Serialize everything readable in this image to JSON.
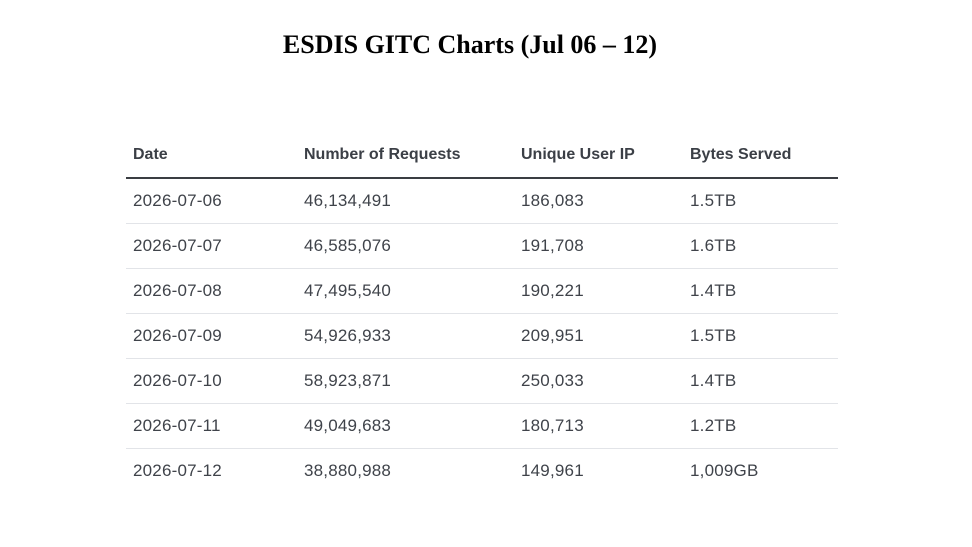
{
  "title": "ESDIS GITC Charts (Jul 06 – 12)",
  "table": {
    "headers": {
      "date": "Date",
      "requests": "Number of Requests",
      "unique_ip": "Unique User IP",
      "bytes": "Bytes Served"
    },
    "rows": [
      {
        "date": "2026-07-06",
        "requests": "46,134,491",
        "unique_ip": "186,083",
        "bytes": "1.5TB"
      },
      {
        "date": "2026-07-07",
        "requests": "46,585,076",
        "unique_ip": "191,708",
        "bytes": "1.6TB"
      },
      {
        "date": "2026-07-08",
        "requests": "47,495,540",
        "unique_ip": "190,221",
        "bytes": "1.4TB"
      },
      {
        "date": "2026-07-09",
        "requests": "54,926,933",
        "unique_ip": "209,951",
        "bytes": "1.5TB"
      },
      {
        "date": "2026-07-10",
        "requests": "58,923,871",
        "unique_ip": "250,033",
        "bytes": "1.4TB"
      },
      {
        "date": "2026-07-11",
        "requests": "49,049,683",
        "unique_ip": "180,713",
        "bytes": "1.2TB"
      },
      {
        "date": "2026-07-12",
        "requests": "38,880,988",
        "unique_ip": "149,961",
        "bytes": "1,009GB"
      }
    ]
  }
}
